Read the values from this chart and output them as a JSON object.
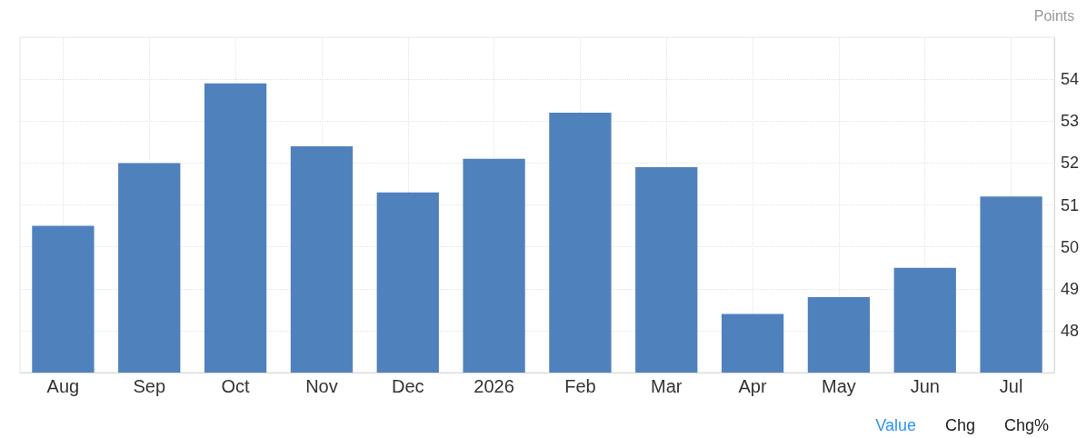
{
  "chart_data": {
    "type": "bar",
    "categories": [
      "Aug",
      "Sep",
      "Oct",
      "Nov",
      "Dec",
      "2026",
      "Feb",
      "Mar",
      "Apr",
      "May",
      "Jun",
      "Jul"
    ],
    "values": [
      50.5,
      52.0,
      53.9,
      52.4,
      51.3,
      52.1,
      53.2,
      51.9,
      48.4,
      48.8,
      49.5,
      51.2
    ],
    "color": "#4f81bd",
    "ylabel": "Points",
    "ylim": [
      47,
      55
    ],
    "yticks": [
      48,
      49,
      50,
      51,
      52,
      53,
      54
    ],
    "grid": true,
    "annotations": [
      "Value",
      "Chg",
      "Chg%"
    ]
  }
}
